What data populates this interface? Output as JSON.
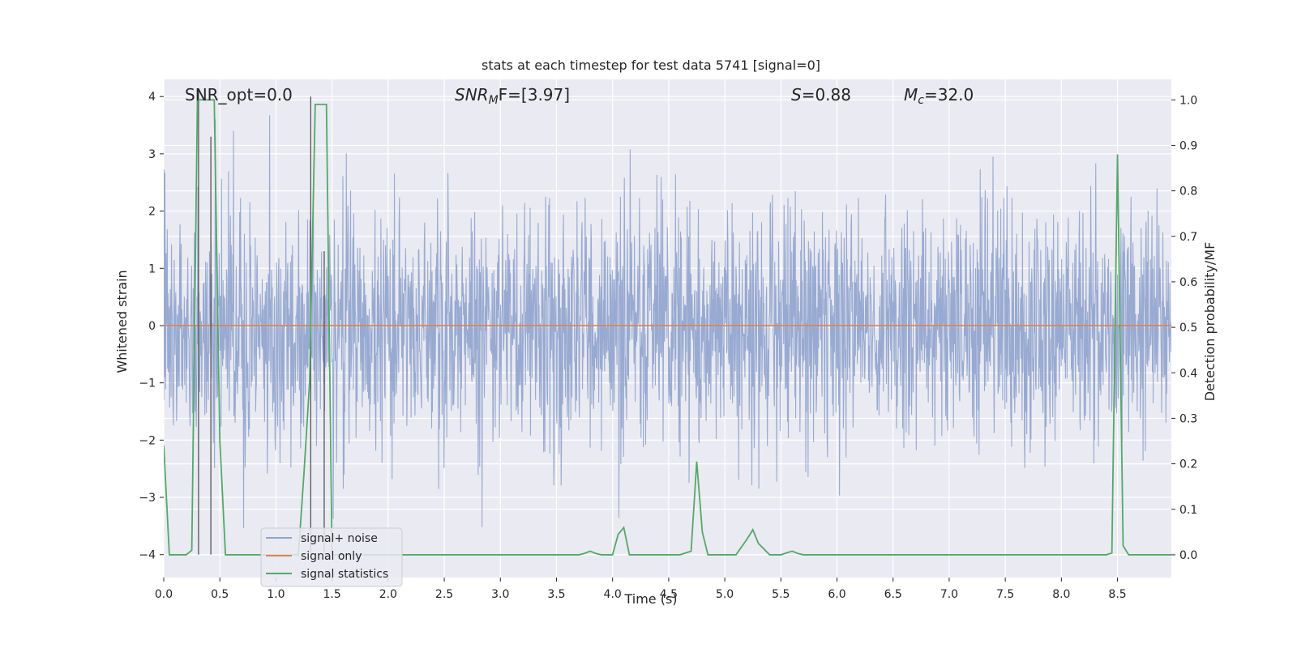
{
  "chart_data": {
    "type": "line",
    "title": "stats at each timestep for test data 5741 [signal=0]",
    "xlabel": "Time (s)",
    "ylabel_left": "Whitened strain",
    "ylabel_right": "Detection probability/MF",
    "xlim": [
      0,
      8.98
    ],
    "ylim_left": [
      -4.4,
      4.3
    ],
    "ylim_right": [
      -0.05,
      1.045
    ],
    "xticks": [
      0.0,
      0.5,
      1.0,
      1.5,
      2.0,
      2.5,
      3.0,
      3.5,
      4.0,
      4.5,
      5.0,
      5.5,
      6.0,
      6.5,
      7.0,
      7.5,
      8.0,
      8.5
    ],
    "xtick_labels": [
      "0.0",
      "0.5",
      "1.0",
      "1.5",
      "2.0",
      "2.5",
      "3.0",
      "3.5",
      "4.0",
      "4.5",
      "5.0",
      "5.5",
      "6.0",
      "6.5",
      "7.0",
      "7.5",
      "8.0",
      "8.5"
    ],
    "yticks_left": [
      4,
      3,
      2,
      1,
      0,
      -1,
      -2,
      -3,
      -4
    ],
    "ytick_labels_left": [
      "4",
      "3",
      "2",
      "1",
      "0",
      "−1",
      "−2",
      "−3",
      "−4"
    ],
    "yticks_right": [
      1.0,
      0.9,
      0.8,
      0.7,
      0.6,
      0.5,
      0.4,
      0.3,
      0.2,
      0.1,
      0.0
    ],
    "ytick_labels_right": [
      "1.0",
      "0.9",
      "0.8",
      "0.7",
      "0.6",
      "0.5",
      "0.4",
      "0.3",
      "0.2",
      "0.1",
      "0.0"
    ],
    "grid": true,
    "annotations": {
      "snr_opt": "SNR_opt=0.0",
      "snr_mf_main": "SNR",
      "snr_mf_sub": "M",
      "snr_mf_rest": "F=[3.97]",
      "s_main": "S",
      "s_rest": "=0.88",
      "mc_main": "M",
      "mc_sub": "c",
      "mc_rest": "=32.0"
    },
    "legend": {
      "position": "lower-left",
      "entries": [
        "signal+ noise",
        "signal only",
        "signal statistics"
      ]
    },
    "colors": {
      "noise": "#8fa3cd",
      "signal": "#dd8452",
      "stats": "#55a868",
      "background": "#eaeaf2",
      "grid": "#ffffff",
      "marker": "#555555"
    },
    "series": [
      {
        "name": "signal+ noise",
        "axis": "left",
        "description": "whitened strain noise, roughly gaussian with std 1, sampled densely over 0 to 8.98 s"
      },
      {
        "name": "signal only",
        "axis": "left",
        "x": [
          0,
          8.98
        ],
        "y": [
          0,
          0
        ]
      },
      {
        "name": "signal statistics",
        "axis": "right",
        "x": [
          0.0,
          0.05,
          0.1,
          0.15,
          0.2,
          0.25,
          0.3,
          0.33,
          0.37,
          0.4,
          0.45,
          0.5,
          0.55,
          0.6,
          0.7,
          0.8,
          0.9,
          1.0,
          1.1,
          1.2,
          1.25,
          1.3,
          1.35,
          1.4,
          1.45,
          1.5,
          1.55,
          1.6,
          1.7,
          2.0,
          2.5,
          3.0,
          3.3,
          3.5,
          3.7,
          3.75,
          3.8,
          3.85,
          3.9,
          4.0,
          4.05,
          4.1,
          4.15,
          4.2,
          4.3,
          4.5,
          4.6,
          4.7,
          4.75,
          4.8,
          4.85,
          4.9,
          5.0,
          5.1,
          5.2,
          5.25,
          5.3,
          5.4,
          5.5,
          5.6,
          5.65,
          5.7,
          5.8,
          6.0,
          6.5,
          7.0,
          7.5,
          8.0,
          8.4,
          8.45,
          8.5,
          8.55,
          8.6,
          8.7,
          8.98
        ],
        "y": [
          0.24,
          0.0,
          0.0,
          0.0,
          0.0,
          0.01,
          1.0,
          1.0,
          1.0,
          1.0,
          1.0,
          0.25,
          0.0,
          0.0,
          0.0,
          0.0,
          0.0,
          0.0,
          0.0,
          0.0,
          0.18,
          0.38,
          0.99,
          0.99,
          0.99,
          0.0,
          0.0,
          0.0,
          0.0,
          0.0,
          0.0,
          0.0,
          0.0,
          0.0,
          0.0,
          0.003,
          0.008,
          0.003,
          0.0,
          0.0,
          0.045,
          0.06,
          0.0,
          0.0,
          0.0,
          0.0,
          0.0,
          0.008,
          0.205,
          0.05,
          0.0,
          0.0,
          0.0,
          0.0,
          0.035,
          0.055,
          0.025,
          0.0,
          0.0,
          0.008,
          0.003,
          0.0,
          0.0,
          0.0,
          0.0,
          0.0,
          0.0,
          0.0,
          0.0,
          0.004,
          0.88,
          0.02,
          0.0,
          0.0,
          0.0
        ]
      }
    ],
    "markers": [
      {
        "x": 0.31,
        "y_top": 4.1,
        "y_bottom": -4.0
      },
      {
        "x": 0.42,
        "y_top": 3.3,
        "y_bottom": -4.0
      },
      {
        "x": 1.31,
        "y_top": 4.0,
        "y_bottom": -4.0
      },
      {
        "x": 1.43,
        "y_top": 1.3,
        "y_bottom": -4.0
      }
    ]
  }
}
